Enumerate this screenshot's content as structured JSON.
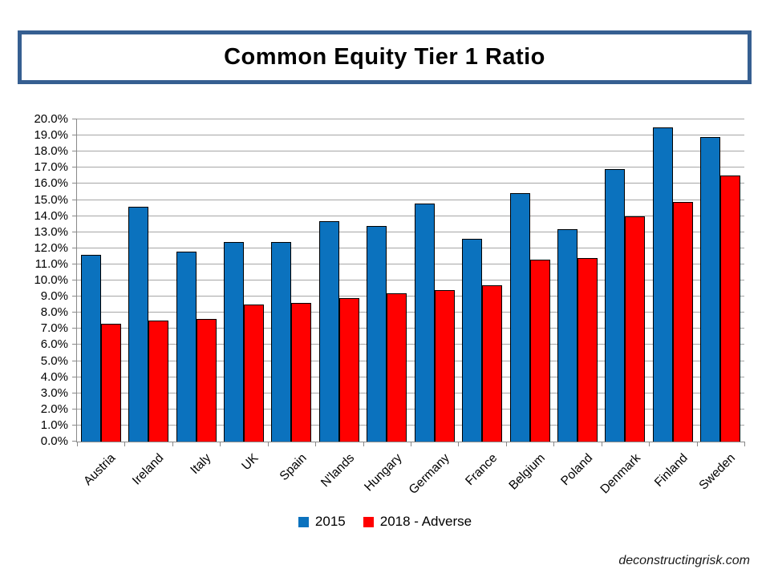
{
  "title": "Common Equity Tier 1 Ratio",
  "watermark": "deconstructingrisk.com",
  "colors": {
    "series_2015": "#0B72BE",
    "series_2018_adverse": "#FF0000",
    "title_border": "#365F91",
    "gridline": "#A6A6A6",
    "axis": "#898989",
    "bar_outline": "#000000"
  },
  "legend": {
    "items": [
      {
        "label": "2015",
        "color": "#0B72BE"
      },
      {
        "label": "2018 - Adverse",
        "color": "#FF0000"
      }
    ]
  },
  "chart_data": {
    "type": "bar",
    "title": "Common Equity Tier 1 Ratio",
    "categories": [
      "Austria",
      "Ireland",
      "Italy",
      "UK",
      "Spain",
      "N'lands",
      "Hungary",
      "Germany",
      "France",
      "Belgium",
      "Poland",
      "Denmark",
      "Finland",
      "Sweden"
    ],
    "series": [
      {
        "name": "2015",
        "color": "#0B72BE",
        "values": [
          11.6,
          14.6,
          11.8,
          12.4,
          12.4,
          13.7,
          13.4,
          14.8,
          12.6,
          15.4,
          13.2,
          16.9,
          19.5,
          18.9
        ]
      },
      {
        "name": "2018 - Adverse",
        "color": "#FF0000",
        "values": [
          7.3,
          7.5,
          7.6,
          8.5,
          8.6,
          8.9,
          9.2,
          9.4,
          9.7,
          11.3,
          11.4,
          14.0,
          14.9,
          16.5
        ]
      }
    ],
    "xlabel": "",
    "ylabel": "",
    "ylim": [
      0,
      20
    ],
    "ytick_step": 1.0,
    "ytick_labels": [
      "0.0%",
      "1.0%",
      "2.0%",
      "3.0%",
      "4.0%",
      "5.0%",
      "6.0%",
      "7.0%",
      "8.0%",
      "9.0%",
      "10.0%",
      "11.0%",
      "12.0%",
      "13.0%",
      "14.0%",
      "15.0%",
      "16.0%",
      "17.0%",
      "18.0%",
      "19.0%",
      "20.0%"
    ],
    "grid": true,
    "legend_position": "bottom"
  }
}
